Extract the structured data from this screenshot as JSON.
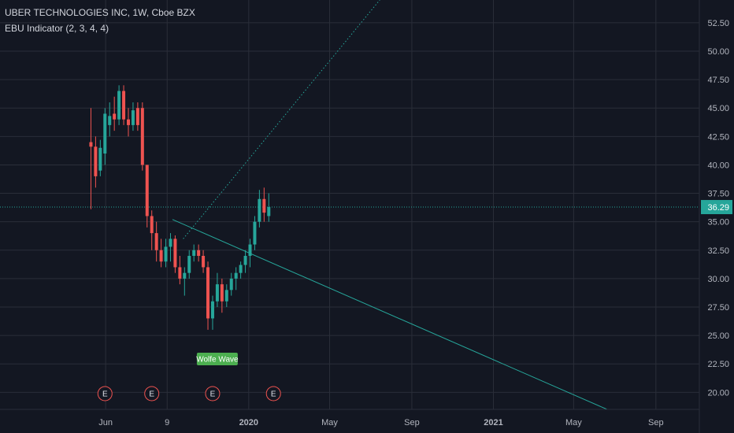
{
  "header": {
    "symbol_line": "UBER TECHNOLOGIES INC, 1W, Cboe BZX",
    "indicator_line": "EBU Indicator (2, 3, 4, 4)"
  },
  "colors": {
    "background": "#131722",
    "grid": "#2a2e39",
    "up": "#26a69a",
    "down": "#ef5350",
    "last_price": "#26a69a",
    "pattern_line": "#26a69a",
    "wolfe_label": "#4caf50",
    "earnings_border": "#ef5350"
  },
  "chart_data": {
    "type": "candlestick",
    "title": "UBER TECHNOLOGIES INC, 1W, Cboe BZX",
    "y_axis": {
      "position": "right",
      "ticks": [
        20.0,
        22.5,
        25.0,
        27.5,
        30.0,
        32.5,
        35.0,
        37.5,
        40.0,
        42.5,
        45.0,
        47.5,
        50.0,
        52.5
      ],
      "tick_labels": [
        "20.00",
        "22.50",
        "25.00",
        "27.50",
        "30.00",
        "32.50",
        "35.00",
        "37.50",
        "40.00",
        "42.50",
        "45.00",
        "47.50",
        "50.00",
        "52.50"
      ],
      "range": [
        18.5,
        54.5
      ]
    },
    "x_axis": {
      "tick_labels": [
        "Jun",
        "9",
        "2020",
        "May",
        "Sep",
        "2021",
        "May",
        "Sep"
      ],
      "tick_dates": [
        "2019-06-01",
        "2019-09-01",
        "2020-01-01",
        "2020-05-01",
        "2020-09-01",
        "2021-01-01",
        "2021-05-01",
        "2021-09-01"
      ],
      "range": [
        "2018-12-25",
        "2021-11-05"
      ]
    },
    "grid": true,
    "last_price": 36.29,
    "last_price_label": "36.29",
    "candles": [
      {
        "date": "2019-05-10",
        "open": 42.0,
        "high": 45.0,
        "low": 36.1,
        "close": 41.6
      },
      {
        "date": "2019-05-17",
        "open": 41.6,
        "high": 42.5,
        "low": 38.0,
        "close": 39.0
      },
      {
        "date": "2019-05-24",
        "open": 39.5,
        "high": 42.2,
        "low": 39.0,
        "close": 41.5
      },
      {
        "date": "2019-05-31",
        "open": 41.0,
        "high": 45.0,
        "low": 40.0,
        "close": 44.5
      },
      {
        "date": "2019-06-07",
        "open": 43.5,
        "high": 45.5,
        "low": 42.5,
        "close": 44.3
      },
      {
        "date": "2019-06-14",
        "open": 44.5,
        "high": 46.0,
        "low": 43.0,
        "close": 44.0
      },
      {
        "date": "2019-06-21",
        "open": 44.0,
        "high": 47.0,
        "low": 43.5,
        "close": 46.5
      },
      {
        "date": "2019-06-28",
        "open": 46.5,
        "high": 47.0,
        "low": 43.5,
        "close": 44.0
      },
      {
        "date": "2019-07-05",
        "open": 44.0,
        "high": 45.0,
        "low": 42.5,
        "close": 43.5
      },
      {
        "date": "2019-07-12",
        "open": 43.5,
        "high": 45.5,
        "low": 43.0,
        "close": 44.8
      },
      {
        "date": "2019-07-19",
        "open": 45.0,
        "high": 45.5,
        "low": 43.0,
        "close": 43.5
      },
      {
        "date": "2019-07-26",
        "open": 45.0,
        "high": 45.5,
        "low": 39.5,
        "close": 40.0
      },
      {
        "date": "2019-08-02",
        "open": 40.0,
        "high": 40.0,
        "low": 34.5,
        "close": 35.5
      },
      {
        "date": "2019-08-09",
        "open": 35.5,
        "high": 36.0,
        "low": 32.5,
        "close": 34.0
      },
      {
        "date": "2019-08-16",
        "open": 34.0,
        "high": 35.0,
        "low": 31.5,
        "close": 32.5
      },
      {
        "date": "2019-08-23",
        "open": 32.5,
        "high": 33.5,
        "low": 31.0,
        "close": 31.5
      },
      {
        "date": "2019-08-30",
        "open": 31.5,
        "high": 33.5,
        "low": 31.0,
        "close": 32.8
      },
      {
        "date": "2019-09-06",
        "open": 32.8,
        "high": 34.0,
        "low": 31.5,
        "close": 33.5
      },
      {
        "date": "2019-09-13",
        "open": 33.5,
        "high": 33.8,
        "low": 30.5,
        "close": 31.0
      },
      {
        "date": "2019-09-20",
        "open": 31.0,
        "high": 32.0,
        "low": 29.5,
        "close": 30.0
      },
      {
        "date": "2019-09-27",
        "open": 30.0,
        "high": 31.0,
        "low": 28.5,
        "close": 30.5
      },
      {
        "date": "2019-10-04",
        "open": 30.5,
        "high": 32.5,
        "low": 30.0,
        "close": 32.0
      },
      {
        "date": "2019-10-11",
        "open": 32.0,
        "high": 33.0,
        "low": 31.5,
        "close": 32.5
      },
      {
        "date": "2019-10-18",
        "open": 32.5,
        "high": 33.0,
        "low": 31.5,
        "close": 32.0
      },
      {
        "date": "2019-10-25",
        "open": 32.0,
        "high": 32.5,
        "low": 30.5,
        "close": 31.0
      },
      {
        "date": "2019-11-01",
        "open": 31.0,
        "high": 31.5,
        "low": 25.5,
        "close": 26.5
      },
      {
        "date": "2019-11-08",
        "open": 26.5,
        "high": 28.5,
        "low": 25.5,
        "close": 28.0
      },
      {
        "date": "2019-11-15",
        "open": 28.0,
        "high": 30.5,
        "low": 27.5,
        "close": 29.5
      },
      {
        "date": "2019-11-22",
        "open": 29.5,
        "high": 30.0,
        "low": 27.0,
        "close": 28.0
      },
      {
        "date": "2019-11-29",
        "open": 28.0,
        "high": 29.5,
        "low": 27.5,
        "close": 29.0
      },
      {
        "date": "2019-12-06",
        "open": 29.0,
        "high": 30.5,
        "low": 28.5,
        "close": 30.0
      },
      {
        "date": "2019-12-13",
        "open": 30.0,
        "high": 31.0,
        "low": 29.0,
        "close": 30.5
      },
      {
        "date": "2019-12-20",
        "open": 30.5,
        "high": 31.5,
        "low": 30.0,
        "close": 31.2
      },
      {
        "date": "2019-12-27",
        "open": 31.2,
        "high": 32.5,
        "low": 30.5,
        "close": 32.0
      },
      {
        "date": "2020-01-03",
        "open": 32.0,
        "high": 33.5,
        "low": 31.0,
        "close": 33.0
      },
      {
        "date": "2020-01-10",
        "open": 33.0,
        "high": 35.5,
        "low": 32.5,
        "close": 35.0
      },
      {
        "date": "2020-01-17",
        "open": 35.0,
        "high": 37.8,
        "low": 34.5,
        "close": 37.0
      },
      {
        "date": "2020-01-24",
        "open": 37.0,
        "high": 38.0,
        "low": 35.0,
        "close": 35.8
      },
      {
        "date": "2020-01-31",
        "open": 35.5,
        "high": 37.5,
        "low": 35.0,
        "close": 36.29
      }
    ],
    "earnings": [
      {
        "date": "2019-05-31",
        "label": "E"
      },
      {
        "date": "2019-08-09",
        "label": "E"
      },
      {
        "date": "2019-11-08",
        "label": "E"
      },
      {
        "date": "2020-02-07",
        "label": "E"
      }
    ],
    "annotations": {
      "wolfe_label": "Wolfe Wave",
      "wolfe_label_at": {
        "date": "2019-11-15",
        "price": 23.0
      },
      "lines": [
        {
          "from": {
            "date": "2019-09-09",
            "price": 35.2
          },
          "to": {
            "date": "2021-06-20",
            "price": 18.5
          },
          "style": "solid"
        },
        {
          "from": {
            "date": "2019-09-25",
            "price": 33.5
          },
          "to": {
            "date": "2020-07-15",
            "price": 54.5
          },
          "style": "dotted"
        }
      ]
    }
  }
}
